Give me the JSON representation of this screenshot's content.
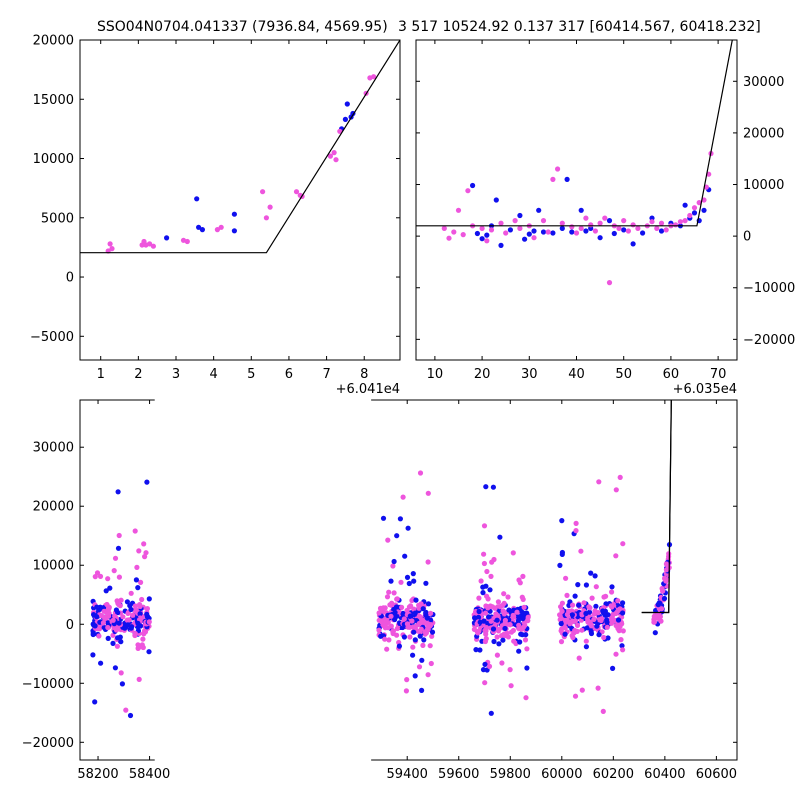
{
  "figure": {
    "title_left": "SSO04N0704.041337 (7936.84, 4569.95)",
    "title_right": "3 517 10524.92 0.137 317 [60414.567, 60418.232]"
  },
  "colors": {
    "series_a": "#1010ee",
    "series_b": "#ee55dd",
    "model": "#000000"
  },
  "chart_data": [
    {
      "type": "scatter",
      "panel": "top-left",
      "x_offset_label": "+6.041e4",
      "xlim": [
        0.45,
        8.95
      ],
      "ylim": [
        -7000,
        20000
      ],
      "xticks": [
        1,
        2,
        3,
        4,
        5,
        6,
        7,
        8
      ],
      "yticks": [
        -5000,
        0,
        5000,
        10000,
        15000,
        20000
      ],
      "grid": false,
      "series": [
        {
          "color": "series_a",
          "points": [
            [
              2.75,
              3300
            ],
            [
              3.55,
              6600
            ],
            [
              3.6,
              4200
            ],
            [
              3.7,
              4000
            ],
            [
              4.55,
              3900
            ],
            [
              4.55,
              5300
            ],
            [
              7.4,
              12500
            ],
            [
              7.5,
              13300
            ],
            [
              7.55,
              14600
            ],
            [
              7.65,
              13500
            ],
            [
              7.7,
              13800
            ]
          ]
        },
        {
          "color": "series_b",
          "points": [
            [
              1.2,
              2200
            ],
            [
              1.25,
              2800
            ],
            [
              1.3,
              2400
            ],
            [
              2.1,
              2700
            ],
            [
              2.15,
              3000
            ],
            [
              2.2,
              2700
            ],
            [
              2.3,
              2800
            ],
            [
              2.4,
              2600
            ],
            [
              3.2,
              3100
            ],
            [
              3.3,
              3000
            ],
            [
              4.1,
              4000
            ],
            [
              4.2,
              4200
            ],
            [
              5.3,
              7200
            ],
            [
              5.4,
              5000
            ],
            [
              5.5,
              5900
            ],
            [
              6.2,
              7200
            ],
            [
              6.3,
              6900
            ],
            [
              6.35,
              6800
            ],
            [
              7.1,
              10200
            ],
            [
              7.2,
              10500
            ],
            [
              7.25,
              9900
            ],
            [
              7.35,
              12300
            ],
            [
              8.05,
              15500
            ],
            [
              8.15,
              16800
            ],
            [
              8.25,
              16900
            ]
          ]
        }
      ],
      "model_line": [
        [
          0.45,
          2050
        ],
        [
          5.4,
          2050
        ],
        [
          8.95,
          20000
        ]
      ]
    },
    {
      "type": "scatter",
      "panel": "top-right",
      "x_offset_label": "+6.035e4",
      "xlim": [
        6,
        74
      ],
      "ylim": [
        -24000,
        38000
      ],
      "xticks": [
        10,
        20,
        30,
        40,
        50,
        60,
        70
      ],
      "yticks": [
        -20000,
        -10000,
        0,
        10000,
        20000,
        30000
      ],
      "grid": false,
      "series": [
        {
          "color": "series_a",
          "points": [
            [
              18,
              9800
            ],
            [
              19,
              500
            ],
            [
              20,
              -500
            ],
            [
              21,
              200
            ],
            [
              22,
              2000
            ],
            [
              23,
              7000
            ],
            [
              24,
              -1800
            ],
            [
              26,
              1200
            ],
            [
              28,
              4000
            ],
            [
              29,
              -600
            ],
            [
              30,
              400
            ],
            [
              31,
              1000
            ],
            [
              32,
              5000
            ],
            [
              33,
              800
            ],
            [
              35,
              600
            ],
            [
              37,
              1500
            ],
            [
              38,
              11000
            ],
            [
              39,
              800
            ],
            [
              41,
              5000
            ],
            [
              42,
              1000
            ],
            [
              43,
              1500
            ],
            [
              45,
              -300
            ],
            [
              47,
              3000
            ],
            [
              48,
              500
            ],
            [
              50,
              1200
            ],
            [
              52,
              -1500
            ],
            [
              54,
              600
            ],
            [
              56,
              3500
            ],
            [
              58,
              1000
            ],
            [
              60,
              2500
            ],
            [
              62,
              2000
            ],
            [
              63,
              6000
            ],
            [
              64,
              3500
            ],
            [
              65,
              4500
            ],
            [
              66,
              3000
            ],
            [
              67,
              5000
            ],
            [
              68,
              9000
            ]
          ]
        },
        {
          "color": "series_b",
          "points": [
            [
              12,
              1500
            ],
            [
              13,
              -400
            ],
            [
              14,
              800
            ],
            [
              15,
              5000
            ],
            [
              16,
              300
            ],
            [
              17,
              8800
            ],
            [
              18,
              2000
            ],
            [
              20,
              1500
            ],
            [
              21,
              -900
            ],
            [
              22,
              1200
            ],
            [
              24,
              2500
            ],
            [
              25,
              600
            ],
            [
              27,
              3000
            ],
            [
              28,
              1500
            ],
            [
              30,
              2000
            ],
            [
              31,
              -300
            ],
            [
              33,
              3000
            ],
            [
              34,
              800
            ],
            [
              35,
              11000
            ],
            [
              36,
              13000
            ],
            [
              37,
              2500
            ],
            [
              39,
              1800
            ],
            [
              40,
              600
            ],
            [
              41,
              1500
            ],
            [
              42,
              3500
            ],
            [
              43,
              2200
            ],
            [
              44,
              1000
            ],
            [
              45,
              2500
            ],
            [
              46,
              3500
            ],
            [
              47,
              -9000
            ],
            [
              48,
              2000
            ],
            [
              49,
              1500
            ],
            [
              50,
              3000
            ],
            [
              51,
              1000
            ],
            [
              52,
              2200
            ],
            [
              53,
              1500
            ],
            [
              55,
              2000
            ],
            [
              56,
              2800
            ],
            [
              57,
              1500
            ],
            [
              58,
              2500
            ],
            [
              59,
              1200
            ],
            [
              60,
              2000
            ],
            [
              61,
              2200
            ],
            [
              62,
              2800
            ],
            [
              63,
              3000
            ],
            [
              64,
              4000
            ],
            [
              65,
              5500
            ],
            [
              66,
              6500
            ],
            [
              67,
              7000
            ],
            [
              67.5,
              9500
            ],
            [
              68,
              12000
            ],
            [
              68.5,
              16000
            ]
          ]
        }
      ],
      "model_line": [
        [
          6,
          2000
        ],
        [
          65.5,
          2000
        ],
        [
          73,
          38000
        ]
      ]
    },
    {
      "type": "scatter",
      "panel": "bottom",
      "xlim": [
        58130,
        60680
      ],
      "ylim": [
        -23000,
        38000
      ],
      "xticks": [
        58200,
        58400,
        59400,
        59600,
        59800,
        60000,
        60200,
        60400,
        60600
      ],
      "yticks": [
        -20000,
        -10000,
        0,
        10000,
        20000,
        30000
      ],
      "grid": false,
      "x_break": [
        58420,
        59260
      ],
      "seasons": [
        [
          58180,
          58400
        ],
        [
          59290,
          59500
        ],
        [
          59660,
          59870
        ],
        [
          59990,
          60240
        ],
        [
          60355,
          60420
        ]
      ],
      "model_line": [
        [
          60310,
          2000
        ],
        [
          60415,
          2000
        ],
        [
          60425,
          38000
        ]
      ]
    }
  ]
}
